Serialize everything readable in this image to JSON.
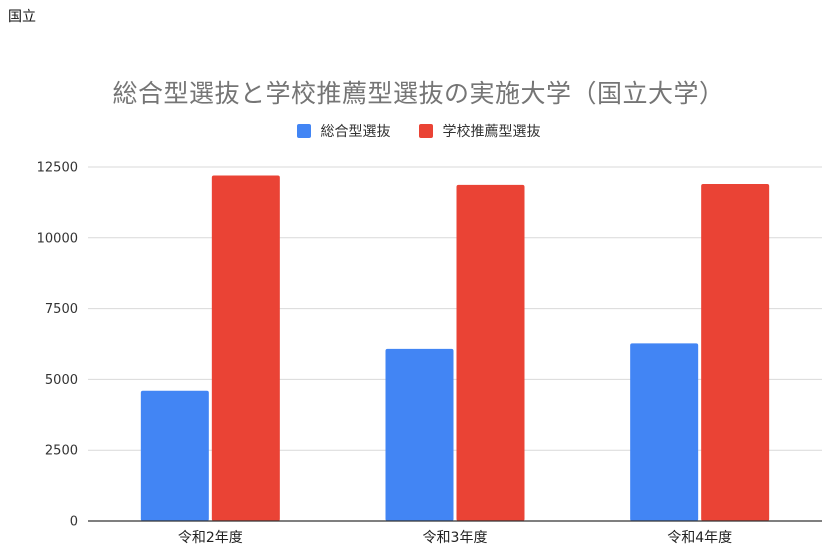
{
  "page": {
    "label": "国立"
  },
  "chart_data": {
    "type": "bar",
    "title": "総合型選抜と学校推薦型選抜の実施大学（国立大学）",
    "xlabel": "",
    "ylabel": "",
    "categories": [
      "令和2年度",
      "令和3年度",
      "令和4年度"
    ],
    "series": [
      {
        "name": "総合型選抜",
        "color": "#4285f4",
        "values": [
          4600,
          6080,
          6270
        ]
      },
      {
        "name": "学校推薦型選抜",
        "color": "#ea4335",
        "values": [
          12200,
          11870,
          11900
        ]
      }
    ],
    "ylim": [
      0,
      12500
    ],
    "yticks": [
      0,
      2500,
      5000,
      7500,
      10000,
      12500
    ],
    "grid": true,
    "legend_position": "top"
  }
}
